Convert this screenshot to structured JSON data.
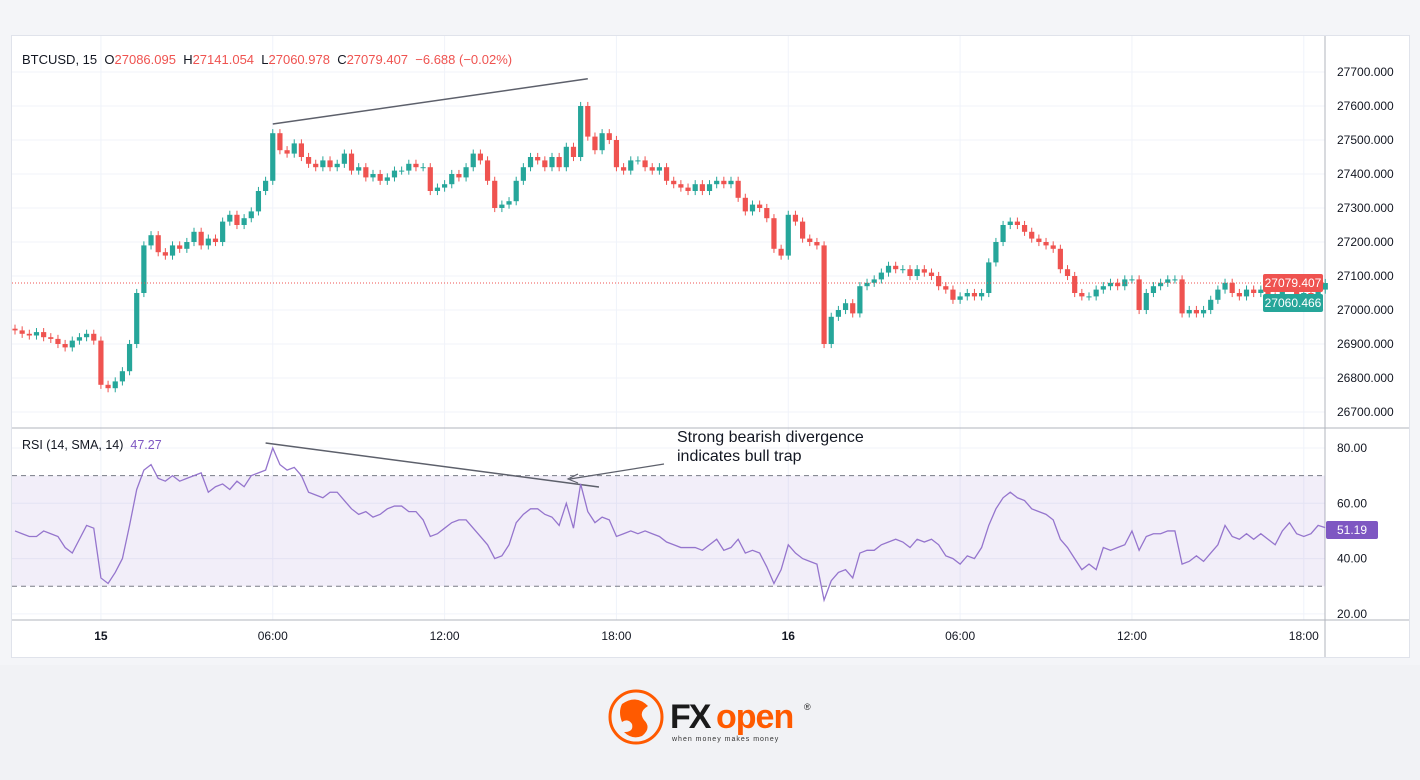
{
  "header": {
    "symbol": "BTCUSD, 15",
    "o_label": "O",
    "o": "27086.095",
    "h_label": "H",
    "h": "27141.054",
    "l_label": "L",
    "l": "27060.978",
    "c_label": "C",
    "c": "27079.407",
    "change": "−6.688 (−0.02%)"
  },
  "rsi_header": {
    "label": "RSI (14, SMA, 14)",
    "value": "47.27"
  },
  "annotation": {
    "line1": "Strong bearish divergence",
    "line2": "indicates bull trap"
  },
  "price_tags": {
    "last": "27079.407",
    "other": "27060.466",
    "last_color": "#ef5350",
    "other_color": "#26a69a"
  },
  "rsi_tag": {
    "value": "51.19",
    "color": "#7e57c2"
  },
  "colors": {
    "up": "#26a69a",
    "down": "#ef5350",
    "rsi": "#9575cd",
    "grid": "#f0f3fa",
    "trendline": "#5d606b"
  },
  "logo": {
    "brand": "FXopen",
    "tagline": "when money makes money"
  },
  "chart_data": [
    {
      "type": "candlestick",
      "interval": "15",
      "ylim": [
        26650,
        27780
      ],
      "y_ticks": [
        "26700.000",
        "26800.000",
        "26900.000",
        "27000.000",
        "27100.000",
        "27200.000",
        "27300.000",
        "27400.000",
        "27500.000",
        "27600.000",
        "27700.000"
      ],
      "x_ticks": [
        {
          "label": "15",
          "index": 12
        },
        {
          "label": "06:00",
          "index": 36
        },
        {
          "label": "12:00",
          "index": 60
        },
        {
          "label": "18:00",
          "index": 84
        },
        {
          "label": "16",
          "index": 108
        },
        {
          "label": "06:00",
          "index": 132
        },
        {
          "label": "12:00",
          "index": 156
        },
        {
          "label": "18:00",
          "index": 180
        }
      ],
      "first_open": 26945,
      "closes": [
        26940,
        26930,
        26925,
        26935,
        26920,
        26915,
        26900,
        26890,
        26910,
        26920,
        26930,
        26910,
        26780,
        26770,
        26790,
        26820,
        26900,
        27050,
        27190,
        27220,
        27170,
        27160,
        27190,
        27180,
        27200,
        27230,
        27190,
        27210,
        27200,
        27260,
        27280,
        27250,
        27270,
        27290,
        27350,
        27380,
        27520,
        27470,
        27460,
        27490,
        27450,
        27430,
        27420,
        27440,
        27420,
        27430,
        27460,
        27410,
        27420,
        27390,
        27400,
        27380,
        27390,
        27410,
        27410,
        27430,
        27420,
        27420,
        27350,
        27360,
        27370,
        27400,
        27390,
        27420,
        27460,
        27440,
        27380,
        27300,
        27310,
        27320,
        27380,
        27420,
        27450,
        27440,
        27420,
        27450,
        27420,
        27480,
        27450,
        27600,
        27510,
        27470,
        27520,
        27500,
        27420,
        27410,
        27440,
        27440,
        27420,
        27410,
        27420,
        27380,
        27370,
        27360,
        27350,
        27370,
        27350,
        27370,
        27380,
        27370,
        27380,
        27330,
        27290,
        27310,
        27300,
        27270,
        27180,
        27160,
        27280,
        27260,
        27210,
        27200,
        27190,
        26900,
        26980,
        27000,
        27020,
        26990,
        27070,
        27080,
        27090,
        27110,
        27130,
        27120,
        27120,
        27100,
        27120,
        27110,
        27100,
        27070,
        27060,
        27030,
        27040,
        27050,
        27040,
        27050,
        27140,
        27200,
        27250,
        27260,
        27250,
        27230,
        27210,
        27200,
        27190,
        27180,
        27120,
        27100,
        27050,
        27040,
        27040,
        27060,
        27070,
        27080,
        27070,
        27090,
        27090,
        27000,
        27050,
        27070,
        27080,
        27090,
        27090,
        26990,
        27000,
        26990,
        27000,
        27030,
        27060,
        27080,
        27050,
        27040,
        27060,
        27050,
        27060,
        27040,
        27030,
        27070,
        27080,
        27040,
        27050,
        27040,
        27060,
        27079.407
      ],
      "last_price_line": 27079.407,
      "trendline": {
        "from": {
          "index": 36,
          "price": 27547
        },
        "to": {
          "index": 80,
          "price": 27680
        }
      }
    },
    {
      "type": "line",
      "name": "RSI (14, SMA, 14)",
      "ylim": [
        17,
        86
      ],
      "y_ticks": [
        "20.00",
        "40.00",
        "60.00",
        "80.00"
      ],
      "bands": {
        "upper": 70,
        "lower": 30
      },
      "values": [
        50,
        49,
        48,
        48,
        50,
        49,
        48,
        44,
        42,
        47,
        52,
        51,
        33,
        31,
        35,
        40,
        52,
        65,
        72,
        74,
        69,
        68,
        70,
        68,
        69,
        70,
        71,
        64,
        66,
        67,
        65,
        68,
        66,
        70,
        71,
        72,
        80,
        74,
        72,
        73,
        70,
        64,
        63,
        62,
        64,
        64,
        61,
        58,
        56,
        57,
        55,
        56,
        58,
        59,
        59,
        57,
        57,
        54,
        48,
        49,
        51,
        53,
        54,
        54,
        51,
        48,
        45,
        40,
        41,
        45,
        53,
        56,
        58,
        58,
        56,
        55,
        52,
        60,
        51,
        67,
        57,
        53,
        55,
        54,
        48,
        49,
        50,
        49,
        50,
        49,
        48,
        46,
        45,
        44,
        44,
        44,
        43,
        45,
        47,
        43,
        44,
        47,
        42,
        43,
        42,
        37,
        31,
        36,
        45,
        42,
        40,
        39,
        38,
        25,
        32,
        35,
        36,
        33,
        42,
        43,
        43,
        45,
        46,
        47,
        46,
        44,
        47,
        46,
        47,
        45,
        41,
        40,
        38,
        41,
        40,
        44,
        52,
        58,
        62,
        64,
        62,
        61,
        58,
        57,
        56,
        54,
        47,
        44,
        40,
        36,
        38,
        36,
        44,
        43,
        44,
        45,
        50,
        43,
        48,
        49,
        49,
        50,
        50,
        38,
        39,
        41,
        39,
        42,
        45,
        52,
        48,
        47,
        49,
        47,
        49,
        47,
        45,
        50,
        53,
        49,
        48,
        49,
        52,
        51.19
      ],
      "trendline": {
        "from": {
          "index": 35,
          "value": 81.8
        },
        "to": {
          "index": 81,
          "value": 65.9
        }
      }
    }
  ]
}
